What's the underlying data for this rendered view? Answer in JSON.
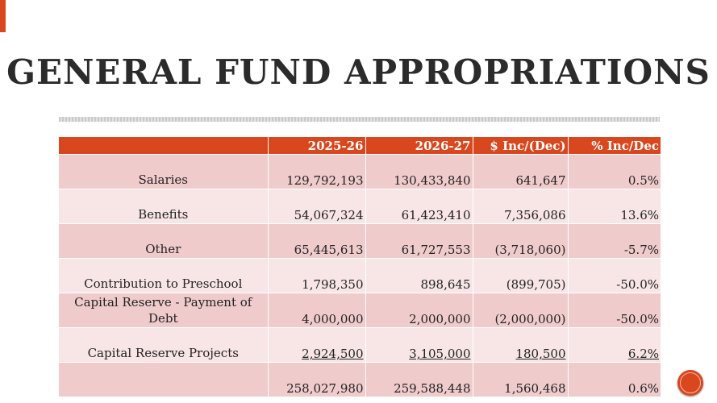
{
  "slide": {
    "title": "GENERAL FUND APPROPRIATIONS"
  },
  "table": {
    "headers": [
      "",
      "2025-26",
      "2026-27",
      "$ Inc/(Dec)",
      "% Inc/Dec"
    ],
    "rows": [
      {
        "label": "Salaries",
        "fy2025_26": "129,792,193",
        "fy2026_27": "130,433,840",
        "inc_dec": "641,647",
        "pct": "0.5%"
      },
      {
        "label": "Benefits",
        "fy2025_26": "54,067,324",
        "fy2026_27": "61,423,410",
        "inc_dec": "7,356,086",
        "pct": "13.6%"
      },
      {
        "label": "Other",
        "fy2025_26": "65,445,613",
        "fy2026_27": "61,727,553",
        "inc_dec": "(3,718,060)",
        "pct": "-5.7%"
      },
      {
        "label": "Contribution to Preschool",
        "fy2025_26": "1,798,350",
        "fy2026_27": "898,645",
        "inc_dec": "(899,705)",
        "pct": "-50.0%"
      },
      {
        "label": "Capital Reserve - Payment of Debt",
        "fy2025_26": "4,000,000",
        "fy2026_27": "2,000,000",
        "inc_dec": "(2,000,000)",
        "pct": "-50.0%"
      },
      {
        "label": "Capital Reserve Projects",
        "fy2025_26": "2,924,500",
        "fy2026_27": "3,105,000",
        "inc_dec": "180,500",
        "pct": "6.2%"
      },
      {
        "label": "",
        "fy2025_26": "258,027,980",
        "fy2026_27": "259,588,448",
        "inc_dec": "1,560,468",
        "pct": "0.6%"
      }
    ]
  },
  "colors": {
    "accent": "#d9471e",
    "row_dark": "#f0cbcc",
    "row_light": "#f8e6e6"
  },
  "icons": {
    "nav": "circle-button-icon"
  }
}
